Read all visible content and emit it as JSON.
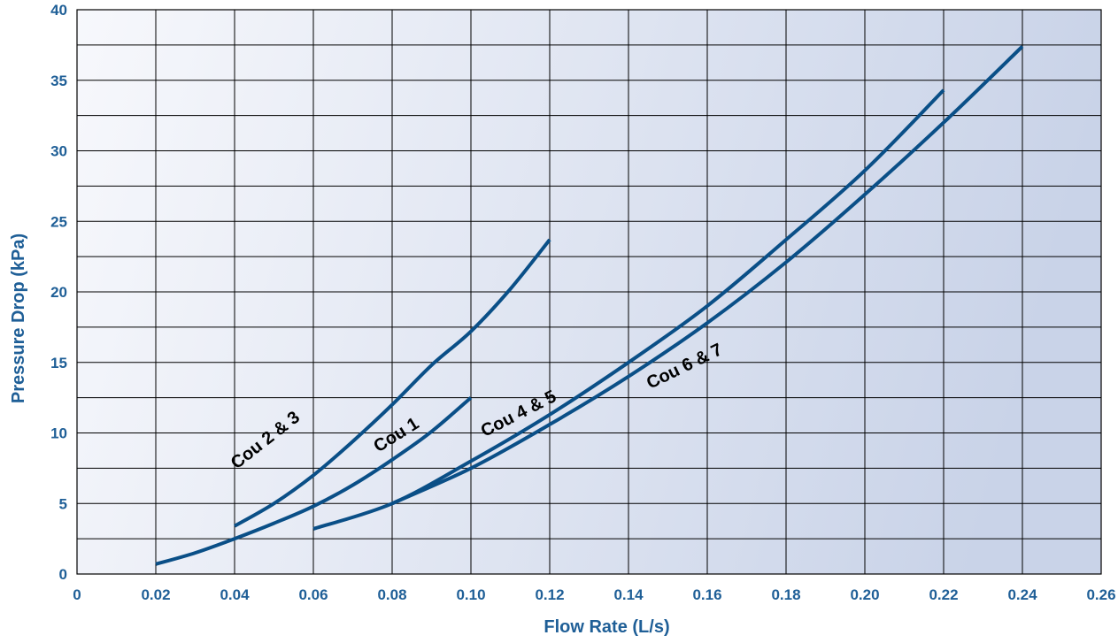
{
  "chart_data": {
    "type": "line",
    "xlabel": "Flow Rate (L/s)",
    "ylabel": "Pressure Drop (kPa)",
    "xlim": [
      0,
      0.26
    ],
    "ylim": [
      0,
      40
    ],
    "x_ticks": [
      "0",
      "0.02",
      "0.04",
      "0.06",
      "0.08",
      "0.10",
      "0.12",
      "0.14",
      "0.16",
      "0.18",
      "0.20",
      "0.22",
      "0.24",
      "0.26"
    ],
    "y_ticks": [
      "0",
      "5",
      "10",
      "15",
      "20",
      "25",
      "30",
      "35",
      "40"
    ],
    "grid": true,
    "legend": "none",
    "series": [
      {
        "name": "Cou 2 & 3",
        "x": [
          0.04,
          0.05,
          0.06,
          0.07,
          0.08,
          0.09,
          0.1,
          0.11,
          0.12
        ],
        "y": [
          3.4,
          5.0,
          7.0,
          9.4,
          12.0,
          14.8,
          17.2,
          20.2,
          23.7
        ]
      },
      {
        "name": "Cou 1",
        "x": [
          0.02,
          0.03,
          0.04,
          0.05,
          0.06,
          0.07,
          0.08,
          0.09,
          0.1
        ],
        "y": [
          0.7,
          1.5,
          2.5,
          3.6,
          4.8,
          6.3,
          8.1,
          10.1,
          12.5
        ]
      },
      {
        "name": "Cou 4 & 5",
        "x": [
          0.06,
          0.08,
          0.1,
          0.12,
          0.14,
          0.16,
          0.18,
          0.2,
          0.22
        ],
        "y": [
          3.2,
          5.0,
          8.0,
          11.3,
          15.0,
          19.0,
          23.7,
          28.6,
          34.3
        ]
      },
      {
        "name": "Cou 6 & 7",
        "x": [
          0.08,
          0.1,
          0.12,
          0.14,
          0.16,
          0.18,
          0.2,
          0.22,
          0.24
        ],
        "y": [
          5.0,
          7.5,
          10.6,
          14.0,
          17.8,
          22.1,
          26.9,
          32.0,
          37.4
        ]
      }
    ],
    "series_labels": [
      {
        "text": "Cou 2 & 3",
        "x": 0.0405,
        "y": 7.4,
        "angle": -38
      },
      {
        "text": "Cou 1",
        "x": 0.0765,
        "y": 8.6,
        "angle": -32
      },
      {
        "text": "Cou 4 & 5",
        "x": 0.1035,
        "y": 9.7,
        "angle": -27
      },
      {
        "text": "Cou 6 & 7",
        "x": 0.1455,
        "y": 13.1,
        "angle": -26
      }
    ],
    "colors": {
      "line": "#0a4f87",
      "tick_text": "#1f5f97",
      "axis_label": "#1f5f97",
      "grid": "#000000",
      "bg_start": "#f7f8fc",
      "bg_end": "#c9d3e8"
    }
  }
}
